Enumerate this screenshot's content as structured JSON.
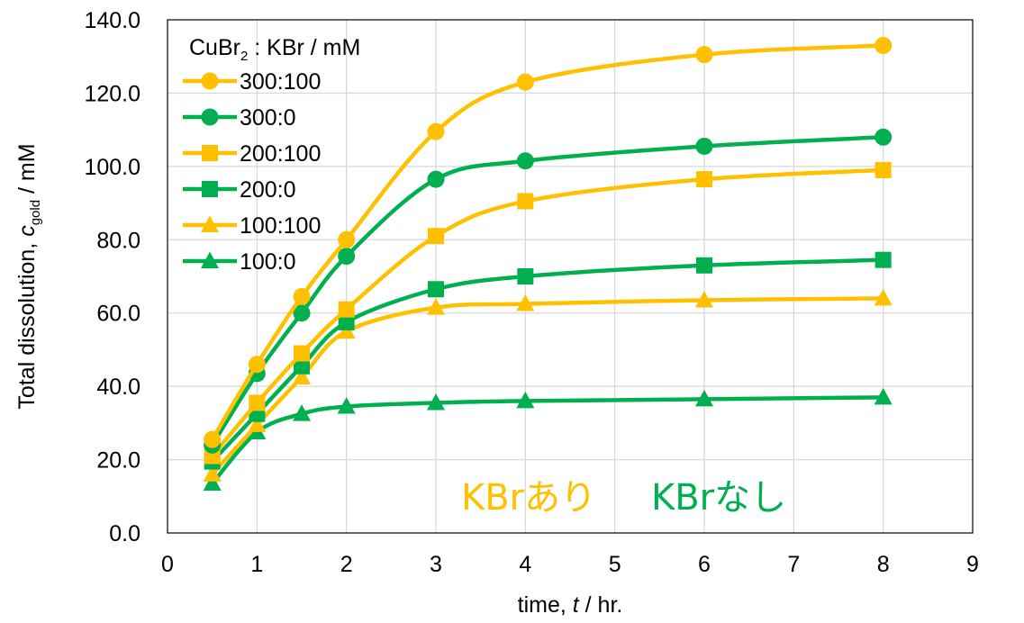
{
  "chart_data": {
    "type": "line",
    "x_axis": {
      "label_prefix": "time, ",
      "label_var": "t",
      "label_suffix": " / hr.",
      "range": [
        0,
        9
      ],
      "ticks": [
        "0",
        "1",
        "2",
        "3",
        "4",
        "5",
        "6",
        "7",
        "8",
        "9"
      ]
    },
    "y_axis": {
      "label_prefix": "Total dissolution, ",
      "label_var": "c",
      "label_sub": "gold",
      "label_suffix": " / mM",
      "range": [
        0,
        140
      ],
      "ticks": [
        "0.0",
        "20.0",
        "40.0",
        "60.0",
        "80.0",
        "100.0",
        "120.0",
        "140.0"
      ]
    },
    "grid": true,
    "legend": {
      "position": "top-left",
      "title_main": "CuBr",
      "title_sub": "2",
      "title_rest": " : KBr / mM"
    },
    "x": [
      0.5,
      1,
      1.5,
      2,
      3,
      4,
      6,
      8
    ],
    "series": [
      {
        "name": "300:100",
        "color": "#FFC000",
        "marker": "circle",
        "values": [
          25.5,
          46,
          64.5,
          80,
          109.5,
          123,
          130.5,
          133
        ]
      },
      {
        "name": "300:0",
        "color": "#00B050",
        "marker": "circle",
        "values": [
          24,
          43.5,
          60,
          75.5,
          96.5,
          101.5,
          105.5,
          108
        ]
      },
      {
        "name": "200:100",
        "color": "#FFC000",
        "marker": "square",
        "values": [
          21,
          35.5,
          49,
          61,
          81,
          90.5,
          96.5,
          99
        ]
      },
      {
        "name": "200:0",
        "color": "#00B050",
        "marker": "square",
        "values": [
          19.5,
          32.5,
          45.5,
          57.5,
          66.5,
          70,
          73,
          74.5
        ]
      },
      {
        "name": "100:100",
        "color": "#FFC000",
        "marker": "triangle",
        "values": [
          16,
          29.5,
          42.5,
          55,
          61.5,
          62.5,
          63.5,
          64
        ]
      },
      {
        "name": "100:0",
        "color": "#00B050",
        "marker": "triangle",
        "values": [
          13.5,
          27.5,
          32.5,
          34.5,
          35.5,
          36,
          36.5,
          37
        ]
      }
    ],
    "annotations": [
      {
        "text": "KBrあり",
        "color": "#FFC000"
      },
      {
        "text": "KBrなし",
        "color": "#00B050"
      }
    ]
  }
}
